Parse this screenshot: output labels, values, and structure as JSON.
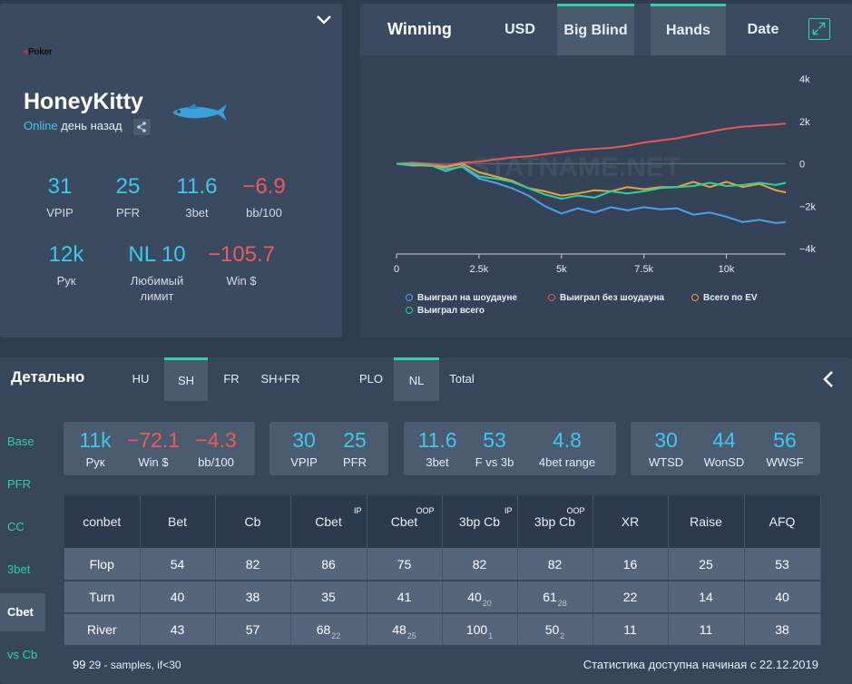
{
  "profile": {
    "logo_text": "Poker",
    "name": "HoneyKitty",
    "online": "Online",
    "last_seen": "день назад",
    "stats_row1": [
      {
        "value": "31",
        "label": "VPIP",
        "color": "#3ec8ea"
      },
      {
        "value": "25",
        "label": "PFR",
        "color": "#3ec8ea"
      },
      {
        "value": "11.6",
        "label": "3bet",
        "color": "#3ec8ea"
      },
      {
        "value": "−6.9",
        "label": "bb/100",
        "color": "#f0595c"
      }
    ],
    "stats_row2": [
      {
        "value": "12k",
        "label": "Рук",
        "color": "#3ec8ea"
      },
      {
        "value": "NL 10",
        "label": "Любимый лимит",
        "color": "#3ec8ea"
      },
      {
        "value": "−105.7",
        "label": "Win $",
        "color": "#f0595c"
      }
    ]
  },
  "chart_panel": {
    "title": "Winning",
    "tabs": [
      {
        "label": "USD",
        "active": false
      },
      {
        "label": "Big Blind",
        "active": true
      },
      {
        "label": "Hands",
        "active": true
      },
      {
        "label": "Date",
        "active": false
      }
    ],
    "watermark": "STATNAME.NET"
  },
  "chart_data": {
    "type": "line",
    "x_ticks": [
      "0",
      "2.5k",
      "5k",
      "7.5k",
      "10k"
    ],
    "y_ticks": [
      "4k",
      "2k",
      "0",
      "−2k",
      "−4k"
    ],
    "xlim": [
      0,
      11800
    ],
    "ylim": [
      -4000,
      4000
    ],
    "x": [
      0,
      500,
      1000,
      1500,
      2000,
      2500,
      3000,
      3500,
      4000,
      4500,
      5000,
      5500,
      6000,
      6500,
      7000,
      7500,
      8000,
      8500,
      9000,
      9500,
      10000,
      10500,
      11000,
      11500,
      11800
    ],
    "series": [
      {
        "name": "Выиграл на шоудауне",
        "color": "#4aa3e6",
        "values": [
          0,
          -100,
          -50,
          -250,
          -150,
          -700,
          -900,
          -1150,
          -1500,
          -2000,
          -2350,
          -2100,
          -2300,
          -2050,
          -2200,
          -2050,
          -2150,
          -2100,
          -2400,
          -2300,
          -2500,
          -2750,
          -2650,
          -2800,
          -2750
        ]
      },
      {
        "name": "Выиграл без шоудауна",
        "color": "#e25a52",
        "values": [
          0,
          50,
          0,
          -100,
          50,
          100,
          200,
          300,
          350,
          450,
          550,
          650,
          700,
          750,
          850,
          1000,
          1100,
          1200,
          1350,
          1500,
          1650,
          1750,
          1800,
          1850,
          1900
        ]
      },
      {
        "name": "Всего по EV",
        "color": "#e8a23c",
        "values": [
          0,
          -50,
          -100,
          -150,
          0,
          -400,
          -600,
          -800,
          -1150,
          -1300,
          -1500,
          -1400,
          -1250,
          -1300,
          -1100,
          -1200,
          -1100,
          -1100,
          -850,
          -1100,
          -850,
          -1100,
          -950,
          -1250,
          -1350
        ]
      },
      {
        "name": "Выиграл всего",
        "color": "#2fcf9a",
        "values": [
          0,
          0,
          -50,
          -350,
          -100,
          -600,
          -700,
          -850,
          -1150,
          -1450,
          -1650,
          -1500,
          -1600,
          -1300,
          -1400,
          -1300,
          -1150,
          -1100,
          -1050,
          -900,
          -1050,
          -1000,
          -900,
          -1000,
          -900
        ]
      }
    ]
  },
  "detail": {
    "title": "Детально",
    "tabs": [
      {
        "label": "HU",
        "active": false
      },
      {
        "label": "SH",
        "active": true
      },
      {
        "label": "FR",
        "active": false
      },
      {
        "label": "SH+FR",
        "active": false
      },
      {
        "label": "PLO",
        "active": false
      },
      {
        "label": "NL",
        "active": true
      },
      {
        "label": "Total",
        "active": false
      }
    ],
    "sidebar": [
      {
        "label": "Base",
        "active": false
      },
      {
        "label": "PFR",
        "active": false
      },
      {
        "label": "CC",
        "active": false
      },
      {
        "label": "3bet",
        "active": false
      },
      {
        "label": "Cbet",
        "active": true
      },
      {
        "label": "vs Cb",
        "active": false
      }
    ],
    "boxes": [
      [
        {
          "value": "11k",
          "label": "Рук",
          "color": "#3ec8ea"
        },
        {
          "value": "−72.1",
          "label": "Win $",
          "color": "#f0595c"
        },
        {
          "value": "−4.3",
          "label": "bb/100",
          "color": "#f0595c"
        }
      ],
      [
        {
          "value": "30",
          "label": "VPIP",
          "color": "#3ec8ea"
        },
        {
          "value": "25",
          "label": "PFR",
          "color": "#3ec8ea"
        }
      ],
      [
        {
          "value": "11.6",
          "label": "3bet",
          "color": "#3ec8ea"
        },
        {
          "value": "53",
          "label": "F vs 3b",
          "color": "#3ec8ea"
        },
        {
          "value": "4.8",
          "label": "4bet range",
          "color": "#3ec8ea"
        }
      ],
      [
        {
          "value": "30",
          "label": "WTSD",
          "color": "#3ec8ea"
        },
        {
          "value": "44",
          "label": "WonSD",
          "color": "#3ec8ea"
        },
        {
          "value": "56",
          "label": "WWSF",
          "color": "#3ec8ea"
        }
      ]
    ],
    "table": {
      "headers": [
        {
          "label": "conbet",
          "sup": ""
        },
        {
          "label": "Bet",
          "sup": ""
        },
        {
          "label": "Cb",
          "sup": ""
        },
        {
          "label": "Cbet",
          "sup": "IP"
        },
        {
          "label": "Cbet",
          "sup": "OOP"
        },
        {
          "label": "3bp Cb",
          "sup": "IP"
        },
        {
          "label": "3bp Cb",
          "sup": "OOP"
        },
        {
          "label": "XR",
          "sup": ""
        },
        {
          "label": "Raise",
          "sup": ""
        },
        {
          "label": "AFQ",
          "sup": ""
        }
      ],
      "rows": [
        [
          {
            "v": "Flop"
          },
          {
            "v": "54"
          },
          {
            "v": "82"
          },
          {
            "v": "86"
          },
          {
            "v": "75"
          },
          {
            "v": "82"
          },
          {
            "v": "82"
          },
          {
            "v": "16"
          },
          {
            "v": "25"
          },
          {
            "v": "53"
          }
        ],
        [
          {
            "v": "Turn"
          },
          {
            "v": "40"
          },
          {
            "v": "38"
          },
          {
            "v": "35"
          },
          {
            "v": "41"
          },
          {
            "v": "40",
            "s": "20"
          },
          {
            "v": "61",
            "s": "28"
          },
          {
            "v": "22"
          },
          {
            "v": "14"
          },
          {
            "v": "40"
          }
        ],
        [
          {
            "v": "River"
          },
          {
            "v": "43"
          },
          {
            "v": "57"
          },
          {
            "v": "68",
            "s": "22"
          },
          {
            "v": "48",
            "s": "25"
          },
          {
            "v": "100",
            "s": "1"
          },
          {
            "v": "50",
            "s": "2"
          },
          {
            "v": "11"
          },
          {
            "v": "11"
          },
          {
            "v": "38"
          }
        ]
      ]
    },
    "footnote_num": "99",
    "footnote_sub": "29",
    "footnote_text": "- samples, if<30",
    "available_since": "Статистика доступна начиная с 22.12.2019"
  }
}
